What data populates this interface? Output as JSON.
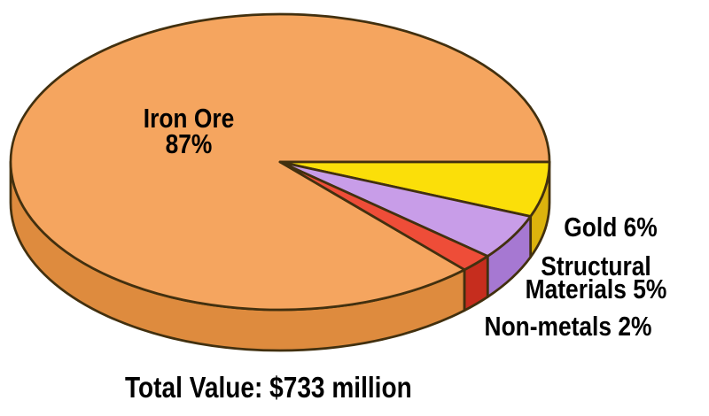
{
  "chart_data": {
    "type": "pie",
    "style": "3d",
    "unit": "%",
    "total_label": "Total Value: $733 million",
    "start_angle_deg": 46.8,
    "background": "#FFFFFF",
    "outline_color": "#42300F",
    "slices": [
      {
        "name": "Iron Ore",
        "value": 87,
        "label_lines": [
          "Iron Ore",
          "87%"
        ],
        "color_top": "#F5A55F",
        "color_side": "#DE8B3E"
      },
      {
        "name": "Gold",
        "value": 6,
        "label_lines": [
          "Gold 6%"
        ],
        "color_top": "#FBDF09",
        "color_side": "#DCB30D"
      },
      {
        "name": "Structural Materials",
        "value": 5,
        "label_lines": [
          "Structural",
          "Materials 5%"
        ],
        "color_top": "#C89DE8",
        "color_side": "#A678D2"
      },
      {
        "name": "Non-metals",
        "value": 2,
        "label_lines": [
          "Non-metals 2%"
        ],
        "color_top": "#EE4D38",
        "color_side": "#C62D1E"
      }
    ]
  }
}
